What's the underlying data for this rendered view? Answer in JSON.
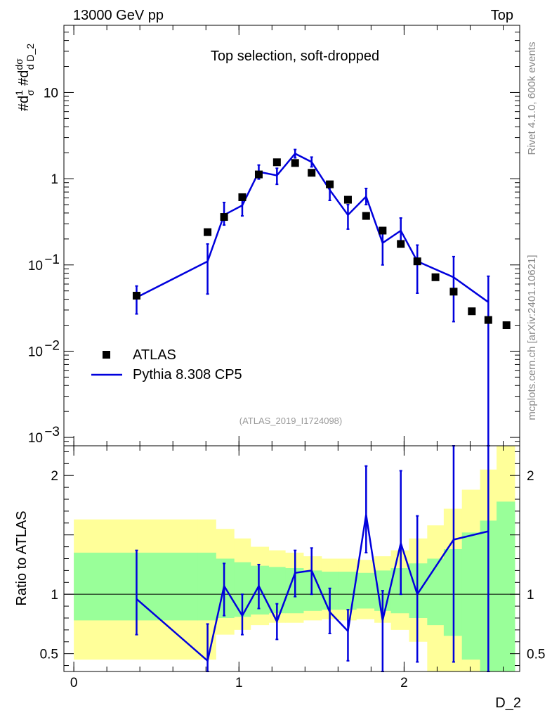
{
  "header": {
    "left_label": "13000 GeV pp",
    "right_label": "Top"
  },
  "side_labels": {
    "rivet": "Rivet 4.1.0,  600k events",
    "mcplots": "mcplots.cern.ch [arXiv:2401.10621]"
  },
  "colors": {
    "mc": "#0000dd",
    "data": "#000000",
    "band_inner": "#99ff99",
    "band_outer": "#ffff99"
  },
  "chart_data": [
    {
      "type": "scatter",
      "title": "Top selection, soft-dropped",
      "reference": "(ATLAS_2019_I1724098)",
      "xlabel": "D_2",
      "ylabel": "#d1/σ #ddσ/d D_2",
      "yscale": "log",
      "xlim": [
        -0.06,
        2.7
      ],
      "ylim": [
        0.0008,
        60
      ],
      "y_ticks": [
        {
          "value": 10,
          "label": "10"
        },
        {
          "value": 1,
          "label": "1"
        },
        {
          "value": 0.1,
          "label": "10",
          "exp": "−1"
        },
        {
          "value": 0.01,
          "label": "10",
          "exp": "−2"
        },
        {
          "value": 0.001,
          "label": "10",
          "exp": "−3"
        }
      ],
      "legend": {
        "position": "middle-left",
        "entries": [
          "ATLAS",
          "Pythia 8.308 CP5"
        ]
      },
      "series": [
        {
          "name": "ATLAS",
          "style": "markers",
          "x": [
            0.38,
            0.81,
            0.91,
            1.02,
            1.12,
            1.23,
            1.34,
            1.44,
            1.55,
            1.66,
            1.77,
            1.87,
            1.98,
            2.08,
            2.19,
            2.3,
            2.41,
            2.51,
            2.62
          ],
          "y": [
            0.044,
            0.24,
            0.36,
            0.61,
            1.12,
            1.55,
            1.52,
            1.17,
            0.86,
            0.57,
            0.37,
            0.25,
            0.175,
            0.11,
            0.072,
            0.049,
            0.029,
            0.023,
            0.02
          ]
        },
        {
          "name": "Pythia 8.308 CP5",
          "style": "line",
          "x": [
            0.38,
            0.81,
            0.91,
            1.02,
            1.12,
            1.23,
            1.34,
            1.44,
            1.55,
            1.66,
            1.77,
            1.87,
            1.98,
            2.08,
            2.3,
            2.51
          ],
          "y": [
            0.042,
            0.11,
            0.38,
            0.49,
            1.2,
            1.09,
            1.95,
            1.56,
            0.74,
            0.38,
            0.62,
            0.18,
            0.25,
            0.11,
            0.072,
            0.037
          ],
          "yerr_low": [
            0.027,
            0.046,
            0.29,
            0.37,
            0.99,
            0.86,
            1.74,
            1.37,
            0.56,
            0.26,
            0.5,
            0.1,
            0.17,
            0.047,
            0.022,
            0.0008
          ],
          "yerr_high": [
            0.057,
            0.175,
            0.53,
            0.6,
            1.44,
            1.32,
            2.18,
            1.78,
            0.92,
            0.5,
            0.77,
            0.26,
            0.35,
            0.17,
            0.125,
            0.074
          ]
        }
      ]
    },
    {
      "type": "line",
      "ylabel": "Ratio to ATLAS",
      "xlabel": "D_2",
      "xlim": [
        -0.06,
        2.7
      ],
      "ylim": [
        0.35,
        2.25
      ],
      "x_ticks": [
        {
          "value": 0,
          "label": "0"
        },
        {
          "value": 1,
          "label": "1"
        },
        {
          "value": 2,
          "label": "2"
        }
      ],
      "y_ticks": [
        {
          "value": 0.5,
          "label": "0.5"
        },
        {
          "value": 1,
          "label": "1"
        },
        {
          "value": 1.5,
          "label": ""
        },
        {
          "value": 2,
          "label": "2"
        }
      ],
      "reference_line": 1,
      "bands": {
        "edges": [
          0.0,
          0.75,
          0.86,
          0.97,
          1.07,
          1.18,
          1.28,
          1.39,
          1.5,
          1.6,
          1.71,
          1.82,
          1.92,
          2.03,
          2.14,
          2.24,
          2.35,
          2.46,
          2.56,
          2.67
        ],
        "inner_low": [
          0.78,
          0.78,
          0.8,
          0.81,
          0.83,
          0.84,
          0.84,
          0.86,
          0.87,
          0.87,
          0.88,
          0.86,
          0.84,
          0.8,
          0.74,
          0.65,
          0.45,
          0.35,
          0.35
        ],
        "inner_high": [
          1.35,
          1.35,
          1.3,
          1.27,
          1.24,
          1.23,
          1.22,
          1.2,
          1.19,
          1.19,
          1.18,
          1.2,
          1.22,
          1.26,
          1.3,
          1.38,
          1.52,
          1.62,
          1.78
        ],
        "outer_low": [
          0.45,
          0.45,
          0.66,
          0.7,
          0.74,
          0.76,
          0.76,
          0.78,
          0.79,
          0.78,
          0.79,
          0.76,
          0.7,
          0.6,
          0.35,
          0.35,
          0.35,
          0.35,
          0.35
        ],
        "outer_high": [
          1.63,
          1.63,
          1.55,
          1.47,
          1.4,
          1.37,
          1.35,
          1.32,
          1.3,
          1.3,
          1.29,
          1.32,
          1.37,
          1.47,
          1.58,
          1.72,
          1.88,
          2.05,
          2.25
        ]
      },
      "series": [
        {
          "name": "Pythia 8.308 CP5 / ATLAS",
          "x": [
            0.38,
            0.81,
            0.91,
            1.02,
            1.12,
            1.23,
            1.34,
            1.44,
            1.55,
            1.66,
            1.77,
            1.87,
            1.98,
            2.08,
            2.3,
            2.51
          ],
          "y": [
            0.96,
            0.44,
            1.07,
            0.82,
            1.07,
            0.77,
            1.18,
            1.2,
            0.85,
            0.69,
            1.67,
            0.78,
            1.43,
            1.0,
            1.46,
            1.53
          ],
          "yerr_low": [
            0.66,
            0.35,
            0.82,
            0.66,
            0.88,
            0.62,
            0.98,
            1.0,
            0.67,
            0.44,
            1.35,
            0.35,
            1.0,
            0.43,
            0.43,
            0.35
          ],
          "yerr_high": [
            1.37,
            0.75,
            1.26,
            1.0,
            1.25,
            0.92,
            1.37,
            1.39,
            1.05,
            0.87,
            2.08,
            1.03,
            2.04,
            1.66,
            2.25,
            2.25
          ]
        }
      ]
    }
  ]
}
